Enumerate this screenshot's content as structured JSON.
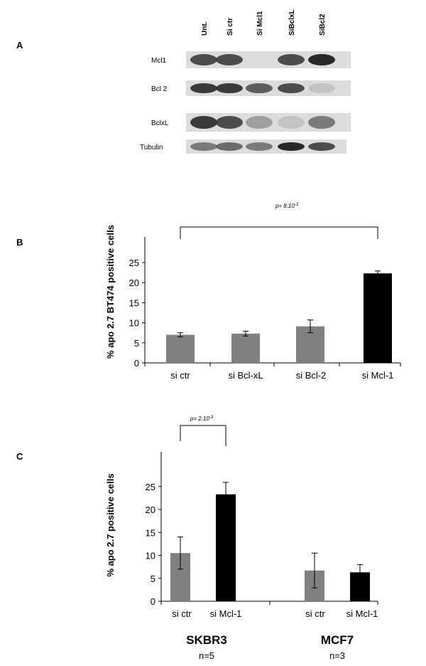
{
  "panels": {
    "a": "A",
    "b": "B",
    "c": "C"
  },
  "blot": {
    "lanes": [
      "Unt.",
      "Si ctr",
      "Si Mcl1",
      "SiBclxL",
      "SiBcl2"
    ],
    "rows": [
      {
        "label": "Mcl1",
        "intensities": [
          0.85,
          0.85,
          0.02,
          0.85,
          0.95
        ]
      },
      {
        "label": "Bcl 2",
        "intensities": [
          0.9,
          0.9,
          0.8,
          0.85,
          0.35
        ]
      },
      {
        "label": "BclxL",
        "intensities": [
          0.9,
          0.85,
          0.55,
          0.35,
          0.7
        ]
      },
      {
        "label": "Tubulin",
        "intensities": [
          0.7,
          0.75,
          0.7,
          0.95,
          0.85
        ]
      }
    ]
  },
  "chart_data": [
    {
      "type": "bar",
      "panel": "B",
      "ylabel": "% apo 2.7 BT474 positive cells",
      "ylim": [
        0,
        25
      ],
      "yticks": [
        0,
        5,
        10,
        15,
        20,
        25
      ],
      "categories": [
        "si ctr",
        "si Bcl-xL",
        "si Bcl-2",
        "si Mcl-1"
      ],
      "values": [
        7.0,
        7.3,
        9.1,
        22.3
      ],
      "errors": [
        0.5,
        0.6,
        1.6,
        0.6
      ],
      "bar_colors": [
        "#808080",
        "#808080",
        "#808080",
        "#000000"
      ],
      "annotation": {
        "text": "p= 8.10",
        "superscript": "-3",
        "from": "si ctr",
        "to": "si Mcl-1"
      }
    },
    {
      "type": "bar",
      "panel": "C",
      "ylabel": "% apo 2.7 positive cells",
      "ylim": [
        0,
        30
      ],
      "yticks": [
        0,
        5,
        10,
        15,
        20,
        25
      ],
      "categories": [
        "si ctr",
        "si Mcl-1",
        "si ctr",
        "si Mcl-1"
      ],
      "values": [
        10.5,
        23.3,
        6.7,
        6.3
      ],
      "errors": [
        3.5,
        2.6,
        3.8,
        1.7
      ],
      "bar_colors": [
        "#808080",
        "#000000",
        "#808080",
        "#000000"
      ],
      "groups": [
        {
          "name": "SKBR3",
          "n": "n=5"
        },
        {
          "name": "MCF7",
          "n": "n=3"
        }
      ],
      "annotation": {
        "text": "p= 2.10",
        "superscript": "-3",
        "from": "si ctr",
        "to": "si Mcl-1"
      }
    }
  ]
}
